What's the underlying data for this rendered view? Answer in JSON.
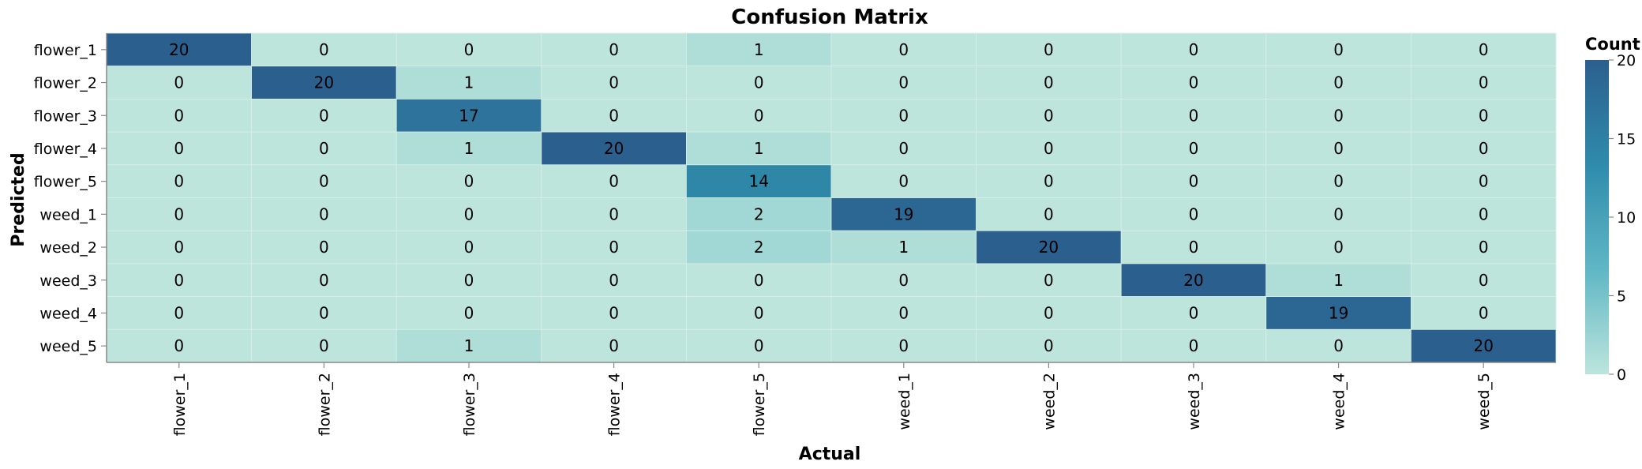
{
  "chart_data": {
    "type": "heatmap",
    "title": "Confusion Matrix",
    "xlabel": "Actual",
    "ylabel": "Predicted",
    "x_categories": [
      "flower_1",
      "flower_2",
      "flower_3",
      "flower_4",
      "flower_5",
      "weed_1",
      "weed_2",
      "weed_3",
      "weed_4",
      "weed_5"
    ],
    "y_categories": [
      "flower_1",
      "flower_2",
      "flower_3",
      "flower_4",
      "flower_5",
      "weed_1",
      "weed_2",
      "weed_3",
      "weed_4",
      "weed_5"
    ],
    "values": [
      [
        20,
        0,
        0,
        0,
        1,
        0,
        0,
        0,
        0,
        0
      ],
      [
        0,
        20,
        1,
        0,
        0,
        0,
        0,
        0,
        0,
        0
      ],
      [
        0,
        0,
        17,
        0,
        0,
        0,
        0,
        0,
        0,
        0
      ],
      [
        0,
        0,
        1,
        20,
        1,
        0,
        0,
        0,
        0,
        0
      ],
      [
        0,
        0,
        0,
        0,
        14,
        0,
        0,
        0,
        0,
        0
      ],
      [
        0,
        0,
        0,
        0,
        2,
        19,
        0,
        0,
        0,
        0
      ],
      [
        0,
        0,
        0,
        0,
        2,
        1,
        20,
        0,
        0,
        0
      ],
      [
        0,
        0,
        0,
        0,
        0,
        0,
        0,
        20,
        1,
        0
      ],
      [
        0,
        0,
        0,
        0,
        0,
        0,
        0,
        0,
        19,
        0
      ],
      [
        0,
        0,
        1,
        0,
        0,
        0,
        0,
        0,
        0,
        20
      ]
    ],
    "value_range": [
      0,
      20
    ],
    "legend": {
      "title": "Count",
      "ticks": [
        0,
        5,
        10,
        15,
        20
      ],
      "placement": "right"
    },
    "color_scale": [
      "#bde5dc",
      "#5fb7c5",
      "#2f8bab",
      "#2b5f8e"
    ]
  }
}
